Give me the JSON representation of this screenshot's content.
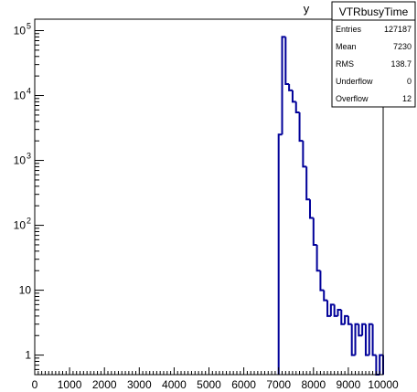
{
  "chart_data": {
    "type": "histogram",
    "title_fragment": "y",
    "xlim": [
      0,
      10000
    ],
    "ylim": [
      0.5,
      150000
    ],
    "log_y": true,
    "x_ticks": [
      0,
      1000,
      2000,
      3000,
      4000,
      5000,
      6000,
      7000,
      8000,
      9000,
      10000
    ],
    "y_ticks": [
      {
        "value": 1,
        "label": "1"
      },
      {
        "value": 10,
        "label": "10"
      },
      {
        "value": 100,
        "label": "10",
        "exp": "2"
      },
      {
        "value": 1000,
        "label": "10",
        "exp": "3"
      },
      {
        "value": 10000,
        "label": "10",
        "exp": "4"
      },
      {
        "value": 100000,
        "label": "10",
        "exp": "5"
      }
    ],
    "line_color": "#000099",
    "bins": [
      {
        "x0": 7000,
        "x1": 7100,
        "y": 2500
      },
      {
        "x0": 7100,
        "x1": 7200,
        "y": 80000
      },
      {
        "x0": 7200,
        "x1": 7300,
        "y": 15000
      },
      {
        "x0": 7300,
        "x1": 7400,
        "y": 12000
      },
      {
        "x0": 7400,
        "x1": 7500,
        "y": 8000
      },
      {
        "x0": 7500,
        "x1": 7600,
        "y": 5500
      },
      {
        "x0": 7600,
        "x1": 7700,
        "y": 2000
      },
      {
        "x0": 7700,
        "x1": 7800,
        "y": 800
      },
      {
        "x0": 7800,
        "x1": 7900,
        "y": 250
      },
      {
        "x0": 7900,
        "x1": 8000,
        "y": 130
      },
      {
        "x0": 8000,
        "x1": 8100,
        "y": 50
      },
      {
        "x0": 8100,
        "x1": 8200,
        "y": 20
      },
      {
        "x0": 8200,
        "x1": 8300,
        "y": 10
      },
      {
        "x0": 8300,
        "x1": 8400,
        "y": 7
      },
      {
        "x0": 8400,
        "x1": 8500,
        "y": 4
      },
      {
        "x0": 8500,
        "x1": 8600,
        "y": 6
      },
      {
        "x0": 8600,
        "x1": 8700,
        "y": 4
      },
      {
        "x0": 8700,
        "x1": 8800,
        "y": 5
      },
      {
        "x0": 8800,
        "x1": 8900,
        "y": 3
      },
      {
        "x0": 8900,
        "x1": 9000,
        "y": 4
      },
      {
        "x0": 9000,
        "x1": 9100,
        "y": 3
      },
      {
        "x0": 9100,
        "x1": 9200,
        "y": 1
      },
      {
        "x0": 9200,
        "x1": 9300,
        "y": 3
      },
      {
        "x0": 9300,
        "x1": 9400,
        "y": 2
      },
      {
        "x0": 9400,
        "x1": 9500,
        "y": 3
      },
      {
        "x0": 9500,
        "x1": 9600,
        "y": 1
      },
      {
        "x0": 9600,
        "x1": 9700,
        "y": 3
      },
      {
        "x0": 9700,
        "x1": 9800,
        "y": 1
      },
      {
        "x0": 9800,
        "x1": 9900,
        "y": 0.5
      },
      {
        "x0": 9900,
        "x1": 10000,
        "y": 1
      }
    ]
  },
  "stats_box": {
    "title": "VTRbusyTime",
    "rows": [
      {
        "label": "Entries",
        "value": "127187"
      },
      {
        "label": "Mean",
        "value": "7230"
      },
      {
        "label": "RMS",
        "value": "138.7"
      },
      {
        "label": "Underflow",
        "value": "0"
      },
      {
        "label": "Overflow",
        "value": "12"
      }
    ]
  }
}
